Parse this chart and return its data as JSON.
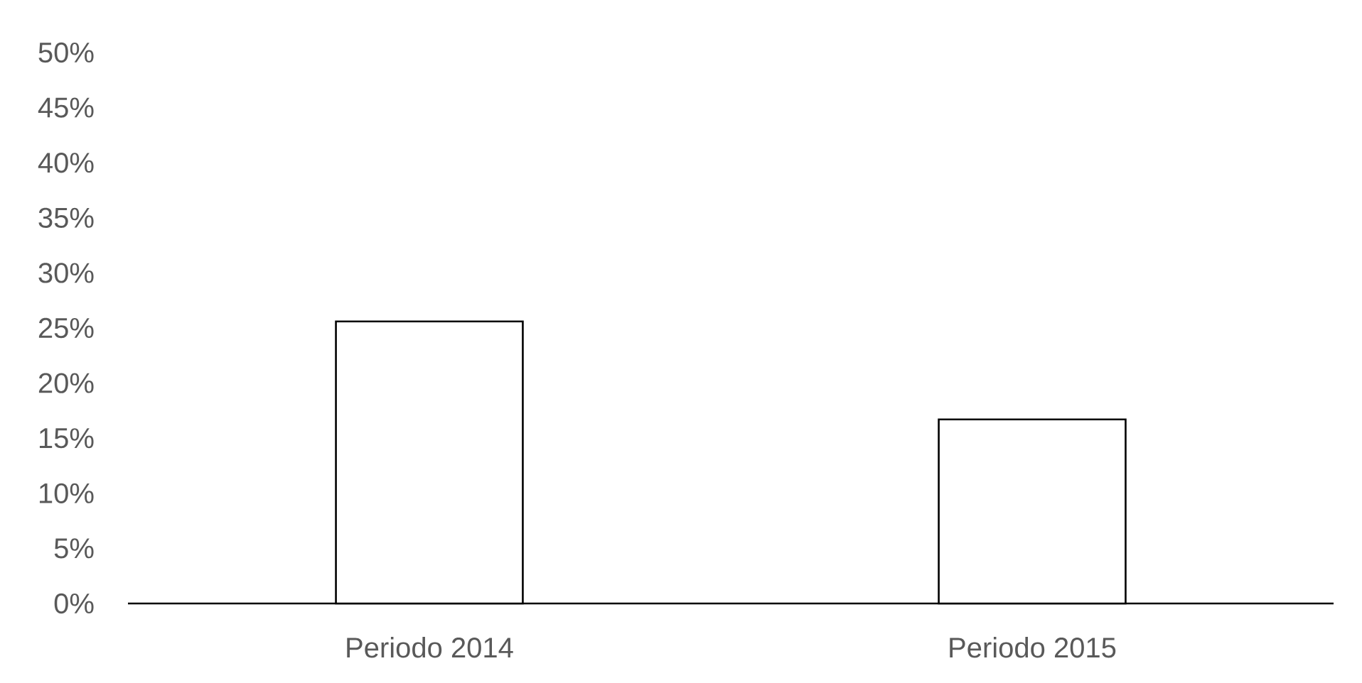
{
  "chart_data": {
    "type": "bar",
    "categories": [
      "Periodo 2014",
      "Periodo 2015"
    ],
    "values": [
      25.6,
      16.7
    ],
    "color": "#ffffff",
    "ylim": [
      0,
      50
    ],
    "yticks": [
      {
        "value": 0,
        "label": "0%"
      },
      {
        "value": 5,
        "label": "5%"
      },
      {
        "value": 10,
        "label": "10%"
      },
      {
        "value": 15,
        "label": "15%"
      },
      {
        "value": 20,
        "label": "20%"
      },
      {
        "value": 25,
        "label": "25%"
      },
      {
        "value": 30,
        "label": "30%"
      },
      {
        "value": 35,
        "label": "35%"
      },
      {
        "value": 40,
        "label": "40%"
      },
      {
        "value": 45,
        "label": "45%"
      },
      {
        "value": 50,
        "label": "50%"
      }
    ]
  }
}
